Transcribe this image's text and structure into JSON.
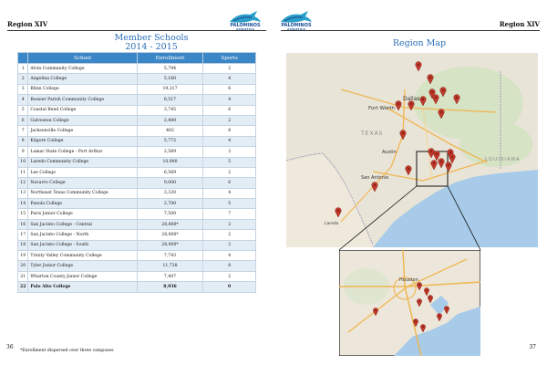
{
  "header": {
    "left_label": "Region XIV",
    "right_label": "Region XIV",
    "logo_text": "ATHLETICS"
  },
  "left_page": {
    "title_line1": "Member Schools",
    "title_line2": "2014 - 2015",
    "columns": [
      "School",
      "Enrollment",
      "Sports"
    ],
    "rows": [
      {
        "num": "1",
        "school": "Alvin Community College",
        "enrollment": "5,794",
        "sports": "2"
      },
      {
        "num": "2",
        "school": "Angelina College",
        "enrollment": "5,160",
        "sports": "4"
      },
      {
        "num": "3",
        "school": "Blinn College",
        "enrollment": "19,317",
        "sports": "6"
      },
      {
        "num": "4",
        "school": "Bossier Parish Community College",
        "enrollment": "8,517",
        "sports": "4"
      },
      {
        "num": "5",
        "school": "Coastal Bend College",
        "enrollment": "3,745",
        "sports": "6"
      },
      {
        "num": "6",
        "school": "Galveston College",
        "enrollment": "2,400",
        "sports": "2"
      },
      {
        "num": "7",
        "school": "Jacksonville College",
        "enrollment": "402",
        "sports": "8"
      },
      {
        "num": "8",
        "school": "Kilgore College",
        "enrollment": "5,772",
        "sports": "4"
      },
      {
        "num": "9",
        "school": "Lamar State College - Port Arthur",
        "enrollment": "2,569",
        "sports": "3"
      },
      {
        "num": "10",
        "school": "Laredo Community College",
        "enrollment": "10,000",
        "sports": "5"
      },
      {
        "num": "11",
        "school": "Lee College",
        "enrollment": "6,569",
        "sports": "2"
      },
      {
        "num": "12",
        "school": "Navarro College",
        "enrollment": "9,000",
        "sports": "6"
      },
      {
        "num": "13",
        "school": "Northeast Texas Community College",
        "enrollment": "3,320",
        "sports": "4"
      },
      {
        "num": "14",
        "school": "Panola College",
        "enrollment": "2,700",
        "sports": "5"
      },
      {
        "num": "15",
        "school": "Paris Junior College",
        "enrollment": "7,500",
        "sports": "7"
      },
      {
        "num": "16",
        "school": "San Jacinto College - Central",
        "enrollment": "28,000*",
        "sports": "2"
      },
      {
        "num": "17",
        "school": "San Jacinto College - North",
        "enrollment": "28,000*",
        "sports": "2"
      },
      {
        "num": "18",
        "school": "San Jacinto College - South",
        "enrollment": "28,000*",
        "sports": "2"
      },
      {
        "num": "19",
        "school": "Trinity Valley Community College",
        "enrollment": "7,743",
        "sports": "4"
      },
      {
        "num": "20",
        "school": "Tyler Junior College",
        "enrollment": "11,738",
        "sports": "8"
      },
      {
        "num": "21",
        "school": "Wharton County Junior College",
        "enrollment": "7,407",
        "sports": "2"
      },
      {
        "num": "22",
        "school": "Palo Alto College",
        "enrollment": "8,936",
        "sports": "0"
      }
    ],
    "footnote": "*Enrollment dispersed over three campuses",
    "page_number": "36"
  },
  "right_page": {
    "title": "Region Map",
    "page_number": "37",
    "map_labels": {
      "dallas": "Dallas",
      "fort_worth": "Fort Worth",
      "texas": "TEXAS",
      "louisiana": "LOUISIANA",
      "san_antonio": "San Antonio",
      "houston": "Houston",
      "austin": "Austin",
      "laredo": "Laredo"
    }
  },
  "colors": {
    "accent_blue": "#2a6fb8",
    "table_header": "#3a86c6",
    "row_alt": "#e3edf6",
    "pin_red": "#c0392b",
    "water": "#a7cbe8",
    "land": "#e9e4d8"
  }
}
